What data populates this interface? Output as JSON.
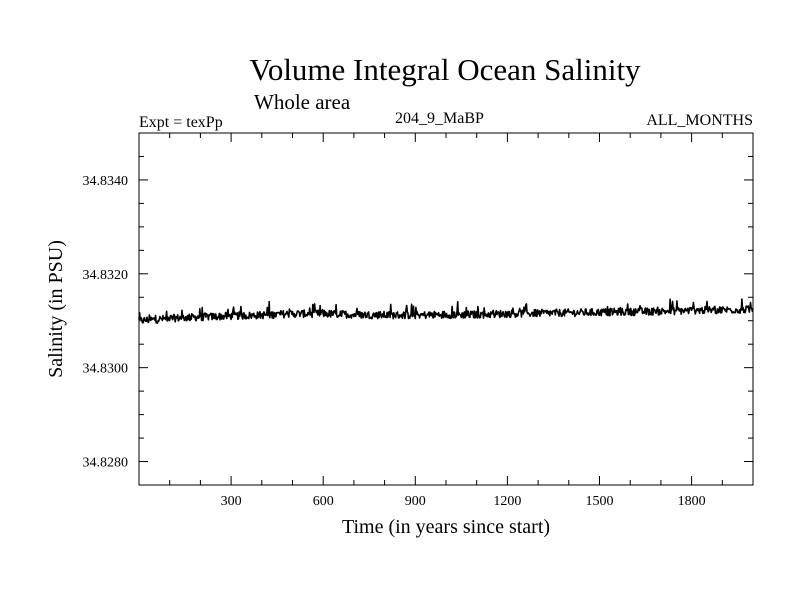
{
  "header": {
    "title": "Volume Integral Ocean Salinity",
    "subtitle": "Whole area",
    "expt": "Expt = texPp",
    "run_id": "204_9_MaBP",
    "months": "ALL_MONTHS"
  },
  "chart_data": {
    "type": "line",
    "title": "Volume Integral Ocean Salinity",
    "subtitle": "Whole area",
    "xlabel": "Time (in years since start)",
    "ylabel": "Salinity (in PSU)",
    "xlim": [
      0,
      2000
    ],
    "ylim": [
      34.8275,
      34.835
    ],
    "x_ticks": [
      300,
      600,
      900,
      1200,
      1500,
      1800
    ],
    "x_tick_labels": [
      "300",
      "600",
      "900",
      "1200",
      "1500",
      "1800"
    ],
    "y_ticks": [
      34.828,
      34.83,
      34.832,
      34.834
    ],
    "y_tick_labels": [
      "34.8280",
      "34.8300",
      "34.8320",
      "34.8340"
    ],
    "grid": false,
    "series": [
      {
        "name": "Salinity",
        "color": "#000000",
        "x": [
          0,
          100,
          200,
          300,
          400,
          500,
          600,
          700,
          800,
          900,
          1000,
          1100,
          1200,
          1300,
          1400,
          1500,
          1600,
          1700,
          1800,
          1900,
          2000
        ],
        "values": [
          34.831,
          34.83105,
          34.83108,
          34.8311,
          34.83112,
          34.83115,
          34.83115,
          34.83113,
          34.83112,
          34.83112,
          34.83113,
          34.83113,
          34.83115,
          34.83116,
          34.83117,
          34.83118,
          34.83119,
          34.8312,
          34.83122,
          34.83123,
          34.83124
        ]
      }
    ]
  }
}
